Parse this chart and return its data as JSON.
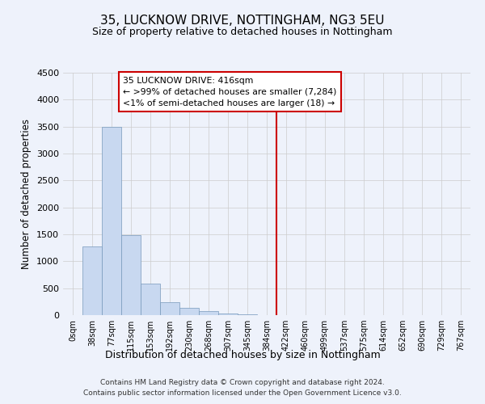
{
  "title": "35, LUCKNOW DRIVE, NOTTINGHAM, NG3 5EU",
  "subtitle": "Size of property relative to detached houses in Nottingham",
  "xlabel": "Distribution of detached houses by size in Nottingham",
  "ylabel": "Number of detached properties",
  "bin_labels": [
    "0sqm",
    "38sqm",
    "77sqm",
    "115sqm",
    "153sqm",
    "192sqm",
    "230sqm",
    "268sqm",
    "307sqm",
    "345sqm",
    "384sqm",
    "422sqm",
    "460sqm",
    "499sqm",
    "537sqm",
    "575sqm",
    "614sqm",
    "652sqm",
    "690sqm",
    "729sqm",
    "767sqm"
  ],
  "bar_heights": [
    0,
    1280,
    3500,
    1480,
    580,
    245,
    135,
    70,
    30,
    10,
    5,
    0,
    0,
    0,
    0,
    0,
    0,
    0,
    0,
    0,
    0
  ],
  "bar_color": "#c8d8f0",
  "bar_edge_color": "#7799bb",
  "ylim": [
    0,
    4500
  ],
  "yticks": [
    0,
    500,
    1000,
    1500,
    2000,
    2500,
    3000,
    3500,
    4000,
    4500
  ],
  "vline_x": 11.0,
  "vline_color": "#cc0000",
  "annotation_title": "35 LUCKNOW DRIVE: 416sqm",
  "annotation_line1": "← >99% of detached houses are smaller (7,284)",
  "annotation_line2": "<1% of semi-detached houses are larger (18) →",
  "annotation_box_color": "#ffffff",
  "annotation_box_edge": "#cc0000",
  "footer_line1": "Contains HM Land Registry data © Crown copyright and database right 2024.",
  "footer_line2": "Contains public sector information licensed under the Open Government Licence v3.0.",
  "bg_color": "#eef2fb",
  "grid_color": "#cccccc"
}
